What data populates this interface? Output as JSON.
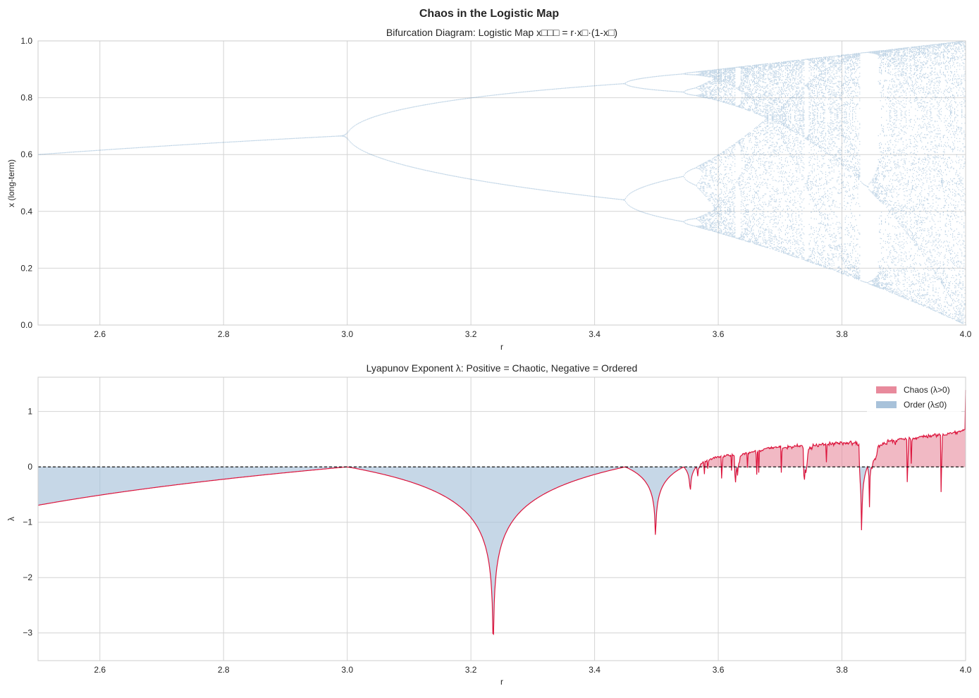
{
  "suptitle": "Chaos in the Logistic Map",
  "chart_data": [
    {
      "type": "scatter",
      "title": "Bifurcation Diagram: Logistic Map x□□□ = r·x□·(1-x□)",
      "xlabel": "r",
      "ylabel": "x (long-term)",
      "xlim": [
        2.5,
        4.0
      ],
      "ylim": [
        0,
        1.0
      ],
      "xticks": [
        "2.6",
        "2.8",
        "3.0",
        "3.2",
        "3.4",
        "3.6",
        "3.8",
        "4.0"
      ],
      "yticks": [
        "0.0",
        "0.2",
        "0.4",
        "0.6",
        "0.8",
        "1.0"
      ],
      "grid": true,
      "color": "#4682b4",
      "series_description_values": {
        "r_range": [
          2.5,
          4.0
        ],
        "map": "x_next = r*x*(1-x)"
      }
    },
    {
      "type": "area",
      "title": "Lyapunov Exponent λ: Positive = Chaotic, Negative = Ordered",
      "xlabel": "r",
      "ylabel": "λ",
      "xlim": [
        2.5,
        4.0
      ],
      "ylim": [
        -3.5,
        1.62
      ],
      "xticks": [
        "2.6",
        "2.8",
        "3.0",
        "3.2",
        "3.4",
        "3.6",
        "3.8",
        "4.0"
      ],
      "yticks": [
        "1",
        "0",
        "−1",
        "−2",
        "−3"
      ],
      "grid": true,
      "legend_position": "top-right",
      "legend": [
        {
          "label": "Chaos (λ>0)",
          "color": "#e88a9c"
        },
        {
          "label": "Order (λ≤0)",
          "color": "#a8c2da"
        }
      ],
      "line_color": "#dc143c",
      "reference_line": 0,
      "key_points": [
        {
          "r": 2.5,
          "lambda": -0.69
        },
        {
          "r": 3.0,
          "lambda": 0.0
        },
        {
          "r": 3.236,
          "lambda": -3.25
        },
        {
          "r": 3.449,
          "lambda": 0.0
        },
        {
          "r": 3.498,
          "lambda": -1.65
        },
        {
          "r": 3.57,
          "lambda": 0.0
        },
        {
          "r": 3.83,
          "lambda": -1.68
        },
        {
          "r": 4.0,
          "lambda": 0.69
        }
      ]
    }
  ]
}
